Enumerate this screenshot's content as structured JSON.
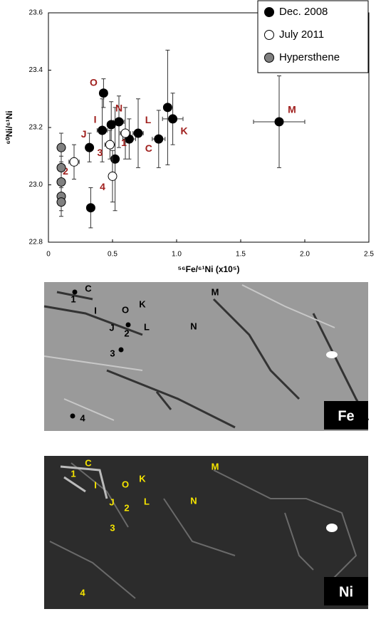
{
  "chart_data": {
    "type": "scatter",
    "x_label": "⁵⁶Fe/⁶¹Ni (x10⁵)",
    "y_label": "⁶⁰Ni/⁶¹Ni",
    "xlim": [
      0,
      2.5
    ],
    "xticks": [
      0,
      0.5,
      {
        "value": 1,
        "label": "1.0"
      },
      1.5,
      {
        "value": 2,
        "label": "2.0"
      },
      2.5
    ],
    "ylim": [
      22.8,
      23.6
    ],
    "yticks": [
      22.8,
      {
        "value": 23,
        "label": "23.0"
      },
      23.2,
      23.4,
      23.6
    ],
    "grid": false,
    "legend": "upper right",
    "label_color": "#a0201e",
    "series": [
      {
        "name": "Dec. 2008",
        "color": "#000000",
        "x": [
          0.32,
          0.33,
          0.42,
          0.43,
          0.49,
          0.52,
          0.55,
          0.63,
          0.7,
          0.86,
          0.93,
          0.97,
          1.8
        ],
        "values": [
          23.13,
          22.92,
          23.19,
          23.32,
          23.21,
          23.09,
          23.22,
          23.16,
          23.18,
          23.16,
          23.27,
          23.23,
          23.22
        ],
        "xerr": [
          0.03,
          0.03,
          0.04,
          0.03,
          0.03,
          0.03,
          0.04,
          0.05,
          0.04,
          0.05,
          0.03,
          0.08,
          0.2
        ],
        "yerr": [
          0.05,
          0.07,
          0.11,
          0.05,
          0.08,
          0.18,
          0.09,
          0.07,
          0.12,
          0.1,
          0.2,
          0.09,
          0.16
        ],
        "point_labels": [
          "J",
          null,
          "I",
          "O",
          null,
          null,
          "N",
          null,
          "L",
          "C",
          null,
          "K",
          "M"
        ]
      },
      {
        "name": "July 2011",
        "color": "#ffffff",
        "x": [
          0.2,
          0.48,
          0.5,
          0.6
        ],
        "values": [
          23.08,
          23.14,
          23.03,
          23.18
        ],
        "xerr": [
          0.04,
          0.04,
          0.03,
          0.04
        ],
        "yerr": [
          0.06,
          0.05,
          0.09,
          0.09
        ],
        "point_labels": [
          "2",
          "3",
          "4",
          "1"
        ]
      },
      {
        "name": "Hypersthene",
        "color": "#808080",
        "x": [
          0.1,
          0.1,
          0.1,
          0.1,
          0.1
        ],
        "values": [
          23.13,
          23.06,
          23.01,
          22.96,
          22.94
        ],
        "xerr": [
          0.01,
          0.01,
          0.01,
          0.01,
          0.01
        ],
        "yerr": [
          0.05,
          0.04,
          0.04,
          0.05,
          0.05
        ]
      }
    ]
  },
  "images": [
    {
      "tag": "Fe",
      "label_color": "#000000",
      "labels": [
        "1",
        "C",
        "I",
        "O",
        "K",
        "M",
        "J",
        "2",
        "L",
        "N",
        "3",
        "4"
      ]
    },
    {
      "tag": "Ni",
      "label_color": "#f5e400",
      "labels": [
        "1",
        "C",
        "I",
        "O",
        "K",
        "M",
        "J",
        "2",
        "L",
        "N",
        "3",
        "4"
      ]
    }
  ]
}
